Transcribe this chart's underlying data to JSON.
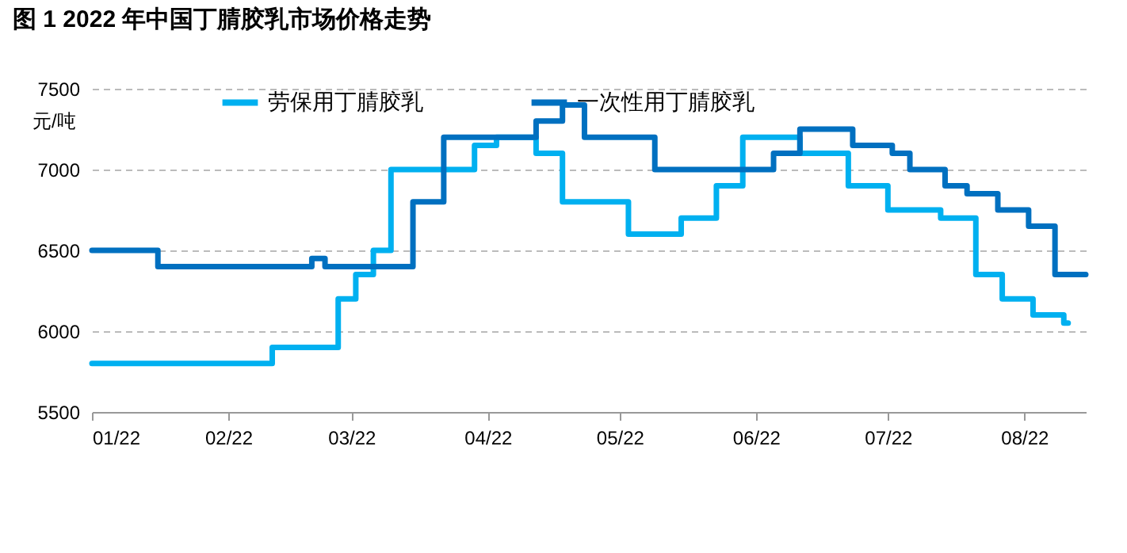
{
  "chart_data": {
    "type": "step",
    "title": "图 1  2022 年中国丁腈胶乳市场价格走势",
    "ylabel": "元/吨",
    "xlim": [
      "2022-01-01",
      "2022-08-15"
    ],
    "xticks": [
      {
        "value": "2022-01-01",
        "label": "01/22"
      },
      {
        "value": "2022-02-01",
        "label": "02/22"
      },
      {
        "value": "2022-03-01",
        "label": "03/22"
      },
      {
        "value": "2022-04-01",
        "label": "04/22"
      },
      {
        "value": "2022-05-01",
        "label": "05/22"
      },
      {
        "value": "2022-06-01",
        "label": "06/22"
      },
      {
        "value": "2022-07-01",
        "label": "07/22"
      },
      {
        "value": "2022-08-01",
        "label": "08/22"
      }
    ],
    "ylim": [
      5500,
      7500
    ],
    "yticks": [
      5500,
      6000,
      6500,
      7000,
      7500
    ],
    "grid": "y",
    "legend": "top",
    "line_style": "solid",
    "series": [
      {
        "name": "劳保用丁腈胶乳",
        "color": "#00b0f0",
        "x": [
          "2022-01-01",
          "2022-02-11",
          "2022-02-26",
          "2022-03-02",
          "2022-03-06",
          "2022-03-10",
          "2022-03-29",
          "2022-04-03",
          "2022-04-12",
          "2022-04-18",
          "2022-05-03",
          "2022-05-15",
          "2022-05-23",
          "2022-05-29",
          "2022-06-11",
          "2022-06-22",
          "2022-07-01",
          "2022-07-13",
          "2022-07-21",
          "2022-07-27",
          "2022-08-03",
          "2022-08-10",
          "2022-08-11"
        ],
        "values": [
          5800,
          5900,
          6200,
          6350,
          6500,
          7000,
          7150,
          7200,
          7100,
          6800,
          6600,
          6700,
          6900,
          7200,
          7100,
          6900,
          6750,
          6700,
          6350,
          6200,
          6100,
          6050,
          6050
        ]
      },
      {
        "name": "一次性用丁腈胶乳",
        "color": "#0070c0",
        "x": [
          "2022-01-01",
          "2022-01-16",
          "2022-02-20",
          "2022-02-23",
          "2022-03-15",
          "2022-03-22",
          "2022-04-12",
          "2022-04-18",
          "2022-04-23",
          "2022-05-09",
          "2022-06-05",
          "2022-06-11",
          "2022-06-23",
          "2022-07-02",
          "2022-07-06",
          "2022-07-14",
          "2022-07-19",
          "2022-07-26",
          "2022-08-02",
          "2022-08-08",
          "2022-08-15"
        ],
        "values": [
          6500,
          6400,
          6450,
          6400,
          6800,
          7200,
          7300,
          7400,
          7200,
          7000,
          7100,
          7250,
          7150,
          7100,
          7000,
          6900,
          6850,
          6750,
          6650,
          6350,
          6350
        ]
      }
    ]
  }
}
